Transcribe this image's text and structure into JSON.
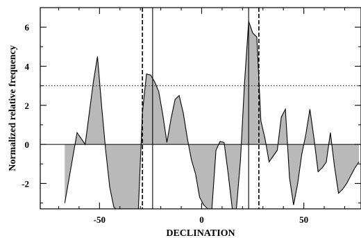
{
  "chart_data": {
    "type": "area",
    "title": "",
    "xlabel": "DECLINATION",
    "ylabel": "Normalized relative frequency",
    "xlim": [
      -79,
      78
    ],
    "ylim": [
      -3.3,
      7.0
    ],
    "x_ticks": [
      -50,
      0,
      50
    ],
    "x_tick_labels": [
      "-50",
      "0",
      "50"
    ],
    "y_ticks": [
      -2,
      0,
      2,
      4,
      6
    ],
    "y_tick_labels": [
      "-2",
      "0",
      "2",
      "4",
      "6"
    ],
    "fill_color": "#b9b9b9",
    "line_color": "#000000",
    "baseline": 0,
    "threshold_line": {
      "y": 3.0,
      "style": "dotted"
    },
    "vertical_solid_lines_x": [
      -24,
      23
    ],
    "vertical_dashed_lines_x": [
      -29,
      28
    ],
    "series": [
      {
        "x": [
          -67,
          -65,
          -63,
          -61,
          -59,
          -57,
          -55,
          -53,
          -51,
          -49,
          -47,
          -45,
          -43,
          -41,
          -39,
          -37,
          -35,
          -33,
          -31,
          -29,
          -27,
          -25,
          -23,
          -21,
          -19,
          -17,
          -15,
          -13,
          -11,
          -9,
          -7,
          -5,
          -3,
          -1,
          1,
          3,
          5,
          7,
          9,
          11,
          13,
          15,
          17,
          19,
          21,
          23,
          25,
          27,
          29,
          31,
          33,
          35,
          37,
          39,
          41,
          43,
          45,
          47,
          49,
          51,
          53,
          55,
          57,
          59,
          61,
          63,
          65,
          67,
          69,
          71,
          73,
          75,
          77
        ],
        "y": [
          -3.0,
          -1.8,
          -0.6,
          0.6,
          0.3,
          0.0,
          1.6,
          3.2,
          4.5,
          2.0,
          -0.3,
          -2.2,
          -3.2,
          -3.4,
          -3.4,
          -3.4,
          -3.4,
          -3.4,
          -3.4,
          1.6,
          3.6,
          3.55,
          3.2,
          2.7,
          1.5,
          0.1,
          1.3,
          2.3,
          2.5,
          1.6,
          0.3,
          -0.8,
          -1.5,
          -2.7,
          -3.1,
          -3.3,
          -3.3,
          -0.3,
          0.15,
          0.1,
          -1.5,
          -3.3,
          -3.3,
          -0.8,
          3.2,
          6.3,
          5.7,
          5.5,
          1.2,
          0.3,
          -0.9,
          -0.6,
          -0.3,
          1.4,
          1.8,
          -1.7,
          -3.1,
          -2.0,
          -0.5,
          0.5,
          1.8,
          0.3,
          -1.4,
          -1.2,
          -0.9,
          0.6,
          -1.1,
          -2.5,
          -2.3,
          -2.0,
          -1.6,
          -1.2,
          -0.9
        ]
      }
    ]
  }
}
